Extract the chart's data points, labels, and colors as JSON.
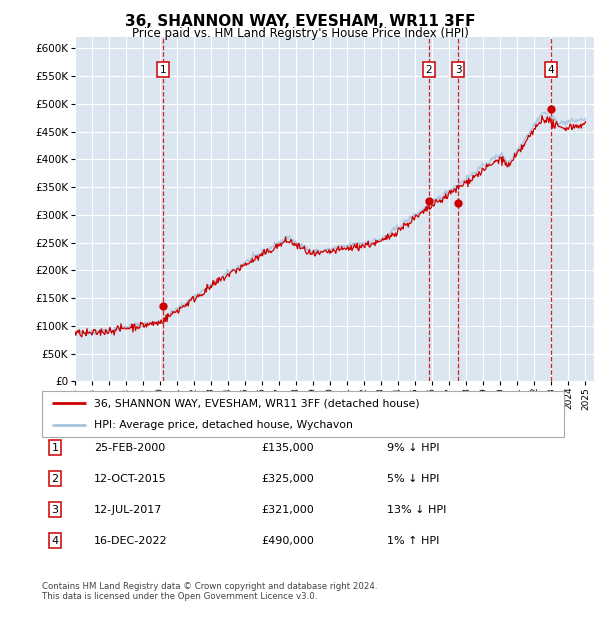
{
  "title": "36, SHANNON WAY, EVESHAM, WR11 3FF",
  "subtitle": "Price paid vs. HM Land Registry's House Price Index (HPI)",
  "plot_bg_color": "#dce6f1",
  "hpi_color": "#a8c4e0",
  "price_color": "#cc0000",
  "dashed_line_color": "#cc0000",
  "ylim": [
    0,
    620000
  ],
  "yticks": [
    0,
    50000,
    100000,
    150000,
    200000,
    250000,
    300000,
    350000,
    400000,
    450000,
    500000,
    550000,
    600000
  ],
  "ytick_labels": [
    "£0",
    "£50K",
    "£100K",
    "£150K",
    "£200K",
    "£250K",
    "£300K",
    "£350K",
    "£400K",
    "£450K",
    "£500K",
    "£550K",
    "£600K"
  ],
  "xlim_start": 1995.0,
  "xlim_end": 2025.5,
  "sales": [
    {
      "num": 1,
      "date": "25-FEB-2000",
      "price": 135000,
      "pct": "9%",
      "dir": "↓",
      "year": 2000.15
    },
    {
      "num": 2,
      "date": "12-OCT-2015",
      "price": 325000,
      "pct": "5%",
      "dir": "↓",
      "year": 2015.78
    },
    {
      "num": 3,
      "date": "12-JUL-2017",
      "price": 321000,
      "pct": "13%",
      "dir": "↓",
      "year": 2017.53
    },
    {
      "num": 4,
      "date": "16-DEC-2022",
      "price": 490000,
      "pct": "1%",
      "dir": "↑",
      "year": 2022.96
    }
  ],
  "legend_label_price": "36, SHANNON WAY, EVESHAM, WR11 3FF (detached house)",
  "legend_label_hpi": "HPI: Average price, detached house, Wychavon",
  "footer": "Contains HM Land Registry data © Crown copyright and database right 2024.\nThis data is licensed under the Open Government Licence v3.0."
}
